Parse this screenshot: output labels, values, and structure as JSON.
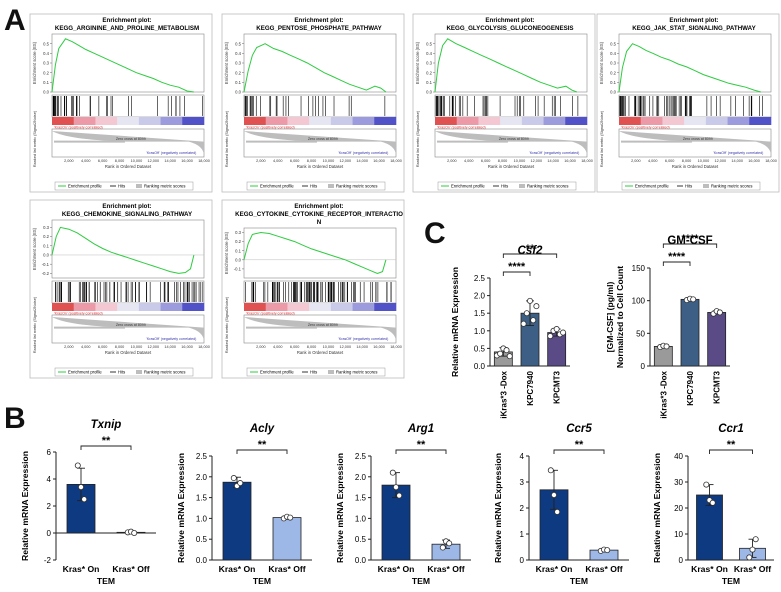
{
  "panel_labels": {
    "a": "A",
    "b": "B",
    "c": "C"
  },
  "colors": {
    "enrichment_line": "#2ecc40",
    "hit_line": "#000000",
    "dark_blue": "#0e3a82",
    "light_blue": "#9db8e6",
    "grey": "#9a9a9a",
    "steel_blue": "#3d5f86",
    "purple": "#5a4a85"
  },
  "gsea_common": {
    "title_prefix": "Enrichment plot:",
    "es_axis_label": "Enrichment score (ES)",
    "metric_axis_label": "Ranked list metric (Signal2Noise)",
    "x_axis_label": "Rank in Ordered Dataset",
    "pos_label": "'KrasOn' (positively correlated)",
    "neg_label": "'KrasOff' (negatively correlated)",
    "zero_cross": "Zero cross at 8099",
    "legend": [
      "Enrichment profile",
      "Hits",
      "Ranking metric scores"
    ]
  },
  "chart_data": [
    {
      "type": "line",
      "id": "gsea-1",
      "title": "KEGG_ARGININE_AND_PROLINE_METABOLISM",
      "x": [
        0,
        400,
        800,
        1600,
        2400,
        3200,
        4000,
        5000,
        6000,
        7000,
        8000,
        9000,
        10000,
        11000,
        12000,
        13000,
        14000,
        15000,
        16000,
        16800
      ],
      "values": [
        0.0,
        0.28,
        0.45,
        0.55,
        0.52,
        0.48,
        0.44,
        0.4,
        0.36,
        0.32,
        0.28,
        0.24,
        0.2,
        0.17,
        0.14,
        0.1,
        0.07,
        0.05,
        0.01,
        0.0
      ],
      "xticks": [
        "2,000",
        "4,000",
        "6,000",
        "8,000",
        "10,000",
        "12,000",
        "14,000",
        "16,000",
        "18,000"
      ],
      "ylim": [
        0.0,
        0.6
      ],
      "yticks": [
        "0.0",
        "0.1",
        "0.2",
        "0.3",
        "0.4",
        "0.5"
      ]
    },
    {
      "type": "line",
      "id": "gsea-2",
      "title": "KEGG_PENTOSE_PHOSPHATE_PATHWAY",
      "x": [
        0,
        500,
        1000,
        1500,
        2500,
        3500,
        4500,
        5500,
        6500,
        7500,
        8500,
        9500,
        10500,
        11500,
        12500,
        13500,
        14500,
        15500,
        16200,
        16800
      ],
      "values": [
        0.0,
        0.22,
        0.38,
        0.46,
        0.5,
        0.45,
        0.42,
        0.38,
        0.34,
        0.3,
        0.25,
        0.2,
        0.16,
        0.12,
        0.08,
        0.05,
        0.02,
        0.06,
        0.04,
        0.0
      ],
      "xticks": [
        "2,000",
        "4,000",
        "6,000",
        "8,000",
        "10,000",
        "12,000",
        "14,000",
        "16,000",
        "18,000"
      ],
      "ylim": [
        0.0,
        0.6
      ],
      "yticks": [
        "0.0",
        "0.1",
        "0.2",
        "0.3",
        "0.4",
        "0.5"
      ]
    },
    {
      "type": "line",
      "id": "gsea-3",
      "title": "KEGG_GLYCOLYSIS_GLUCONEOGENESIS",
      "x": [
        0,
        400,
        900,
        1500,
        2500,
        3500,
        4500,
        5500,
        6500,
        7500,
        8500,
        9500,
        10500,
        11500,
        12500,
        13500,
        14500,
        15500,
        16200,
        16800
      ],
      "values": [
        0.0,
        0.3,
        0.48,
        0.55,
        0.5,
        0.46,
        0.42,
        0.38,
        0.34,
        0.3,
        0.26,
        0.22,
        0.18,
        0.14,
        0.1,
        0.07,
        0.04,
        0.06,
        0.02,
        0.0
      ],
      "xticks": [
        "2,000",
        "4,000",
        "6,000",
        "8,000",
        "10,000",
        "12,000",
        "14,000",
        "16,000",
        "18,000"
      ],
      "ylim": [
        0.0,
        0.6
      ],
      "yticks": [
        "0.0",
        "0.1",
        "0.2",
        "0.3",
        "0.4",
        "0.5"
      ]
    },
    {
      "type": "line",
      "id": "gsea-4",
      "title": "KEGG_JAK_STAT_SIGNALING_PATHWAY",
      "x": [
        0,
        400,
        900,
        1600,
        2400,
        3200,
        4000,
        5000,
        6000,
        7000,
        8000,
        9000,
        10000,
        11000,
        12000,
        13000,
        14000,
        15000,
        16000,
        16800
      ],
      "values": [
        0.0,
        0.25,
        0.42,
        0.5,
        0.47,
        0.43,
        0.4,
        0.36,
        0.33,
        0.29,
        0.26,
        0.22,
        0.18,
        0.15,
        0.12,
        0.09,
        0.07,
        0.05,
        0.02,
        0.0
      ],
      "xticks": [
        "2,000",
        "4,000",
        "6,000",
        "8,000",
        "10,000",
        "12,000",
        "14,000",
        "16,000",
        "18,000"
      ],
      "ylim": [
        0.0,
        0.6
      ],
      "yticks": [
        "0.0",
        "0.1",
        "0.2",
        "0.3",
        "0.4",
        "0.5"
      ]
    },
    {
      "type": "line",
      "id": "gsea-5",
      "title": "KEGG_CHEMOKINE_SIGNALING_PATHWAY",
      "x": [
        0,
        500,
        1000,
        2000,
        3000,
        4000,
        5000,
        6000,
        7000,
        8000,
        9000,
        10000,
        11000,
        12000,
        13000,
        14000,
        15000,
        15800,
        16400,
        16800
      ],
      "values": [
        0.0,
        0.2,
        0.3,
        0.28,
        0.24,
        0.18,
        0.12,
        0.07,
        0.03,
        0.0,
        -0.03,
        -0.06,
        -0.09,
        -0.12,
        -0.15,
        -0.18,
        -0.2,
        -0.19,
        -0.15,
        0.0
      ],
      "xticks": [
        "2,000",
        "4,000",
        "6,000",
        "8,000",
        "10,000",
        "12,000",
        "14,000",
        "16,000",
        "18,000"
      ],
      "ylim": [
        -0.25,
        0.38
      ],
      "yticks": [
        "-0.2",
        "-0.1",
        "0.0",
        "0.1",
        "0.2",
        "0.3"
      ]
    },
    {
      "type": "line",
      "id": "gsea-6",
      "title": "KEGG_CYTOKINE_CYTOKINE_RECEPTOR_INTERACTIO",
      "title2": "N",
      "x": [
        0,
        500,
        1000,
        2000,
        3000,
        4000,
        5000,
        6000,
        7000,
        8000,
        9000,
        10000,
        11000,
        12000,
        13000,
        14000,
        15000,
        15800,
        16400,
        16800
      ],
      "values": [
        0.0,
        0.18,
        0.28,
        0.3,
        0.29,
        0.26,
        0.23,
        0.2,
        0.16,
        0.12,
        0.09,
        0.06,
        0.03,
        0.0,
        -0.04,
        -0.08,
        -0.12,
        -0.15,
        -0.13,
        0.0
      ],
      "xticks": [
        "2,000",
        "4,000",
        "6,000",
        "8,000",
        "10,000",
        "12,000",
        "14,000",
        "16,000",
        "18,000"
      ],
      "ylim": [
        -0.2,
        0.35
      ],
      "yticks": [
        "-0.1",
        "0.0",
        "0.1",
        "0.2",
        "0.3"
      ]
    },
    {
      "type": "bar",
      "id": "c-csf2",
      "title": "Csf2",
      "title_italic": true,
      "ylabel": "Relative mRNA Expression",
      "categories": [
        "iKras*3 -Dox",
        "KPC7940",
        "KPCMT3"
      ],
      "values": [
        0.4,
        1.5,
        0.95
      ],
      "errors": [
        0.12,
        0.35,
        0.1
      ],
      "ylim": [
        0,
        2.5
      ],
      "yticks": [
        "0.0",
        "0.5",
        "1.0",
        "1.5",
        "2.0",
        "2.5"
      ],
      "points": [
        [
          0.3,
          0.35,
          0.5,
          0.45,
          0.28
        ],
        [
          1.2,
          1.5,
          1.85,
          1.3,
          1.7
        ],
        [
          0.85,
          1.0,
          1.05,
          0.9,
          0.95
        ]
      ],
      "significance": [
        {
          "from": 0,
          "to": 1,
          "label": "****"
        },
        {
          "from": 0,
          "to": 2,
          "label": "**"
        }
      ]
    },
    {
      "type": "bar",
      "id": "c-gmcsf",
      "title": "GM-CSF",
      "title_italic": false,
      "ylabel": "[GM-CSF] (pg/ml) Normalized to Cell Count",
      "categories": [
        "iKras*3 -Dox",
        "KPC7940",
        "KPCMT3"
      ],
      "values": [
        30,
        102,
        82
      ],
      "errors": [
        2,
        1.5,
        2.5
      ],
      "ylim": [
        0,
        150
      ],
      "yticks": [
        "0",
        "50",
        "100",
        "150"
      ],
      "points": [
        [
          29,
          31,
          30
        ],
        [
          101,
          103,
          102
        ],
        [
          80,
          84,
          82
        ]
      ],
      "significance": [
        {
          "from": 0,
          "to": 1,
          "label": "****"
        },
        {
          "from": 0,
          "to": 2,
          "label": "****"
        }
      ]
    },
    {
      "type": "bar",
      "id": "b-txnip",
      "title": "Txnip",
      "title_italic": true,
      "ylabel": "Relative mRNA Expression",
      "xgroup": "TEM",
      "categories": [
        "Kras* On",
        "Kras* Off"
      ],
      "values": [
        3.6,
        0.05
      ],
      "errors": [
        1.2,
        0.1
      ],
      "ylim": [
        -2,
        6
      ],
      "yticks": [
        "-2",
        "0",
        "2",
        "4",
        "6"
      ],
      "points": [
        [
          5.0,
          3.4,
          2.5
        ],
        [
          0.05,
          0.1,
          0.0
        ]
      ],
      "significance": [
        {
          "from": 0,
          "to": 1,
          "label": "**"
        }
      ]
    },
    {
      "type": "bar",
      "id": "b-acly",
      "title": "Acly",
      "title_italic": true,
      "ylabel": "Relative mRNA Expression",
      "xgroup": "TEM",
      "categories": [
        "Kras* On",
        "Kras* Off"
      ],
      "values": [
        1.87,
        1.02
      ],
      "errors": [
        0.12,
        0.04
      ],
      "ylim": [
        0,
        2.5
      ],
      "yticks": [
        "0.0",
        "0.5",
        "1.0",
        "1.5",
        "2.0",
        "2.5"
      ],
      "points": [
        [
          1.97,
          1.78,
          1.85
        ],
        [
          1.0,
          1.04,
          1.02
        ]
      ],
      "significance": [
        {
          "from": 0,
          "to": 1,
          "label": "**"
        }
      ]
    },
    {
      "type": "bar",
      "id": "b-arg1",
      "title": "Arg1",
      "title_italic": true,
      "ylabel": "Relative mRNA Expression",
      "xgroup": "TEM",
      "categories": [
        "Kras* On",
        "Kras* Off"
      ],
      "values": [
        1.8,
        0.38
      ],
      "errors": [
        0.3,
        0.1
      ],
      "ylim": [
        0,
        2.5
      ],
      "yticks": [
        "0.0",
        "0.5",
        "1.0",
        "1.5",
        "2.0",
        "2.5"
      ],
      "points": [
        [
          2.1,
          1.75,
          1.55
        ],
        [
          0.3,
          0.45,
          0.4
        ]
      ],
      "significance": [
        {
          "from": 0,
          "to": 1,
          "label": "**"
        }
      ]
    },
    {
      "type": "bar",
      "id": "b-ccr5",
      "title": "Ccr5",
      "title_italic": true,
      "ylabel": "Relative mRNA Expression",
      "xgroup": "TEM",
      "categories": [
        "Kras* On",
        "Kras* Off"
      ],
      "values": [
        2.7,
        0.38
      ],
      "errors": [
        0.75,
        0.05
      ],
      "ylim": [
        0,
        4
      ],
      "yticks": [
        "0",
        "1",
        "2",
        "3",
        "4"
      ],
      "points": [
        [
          3.45,
          2.5,
          1.85
        ],
        [
          0.35,
          0.4,
          0.38
        ]
      ],
      "significance": [
        {
          "from": 0,
          "to": 1,
          "label": "**"
        }
      ]
    },
    {
      "type": "bar",
      "id": "b-ccr1",
      "title": "Ccr1",
      "title_italic": true,
      "ylabel": "Relative mRNA Expression",
      "xgroup": "TEM",
      "categories": [
        "Kras* On",
        "Kras* Off"
      ],
      "values": [
        25,
        4.5
      ],
      "errors": [
        4,
        3.5
      ],
      "ylim": [
        0,
        40
      ],
      "yticks": [
        "0",
        "10",
        "20",
        "30",
        "40"
      ],
      "points": [
        [
          29,
          23,
          22
        ],
        [
          1,
          4,
          8
        ]
      ],
      "significance": [
        {
          "from": 0,
          "to": 1,
          "label": "**"
        }
      ]
    }
  ]
}
